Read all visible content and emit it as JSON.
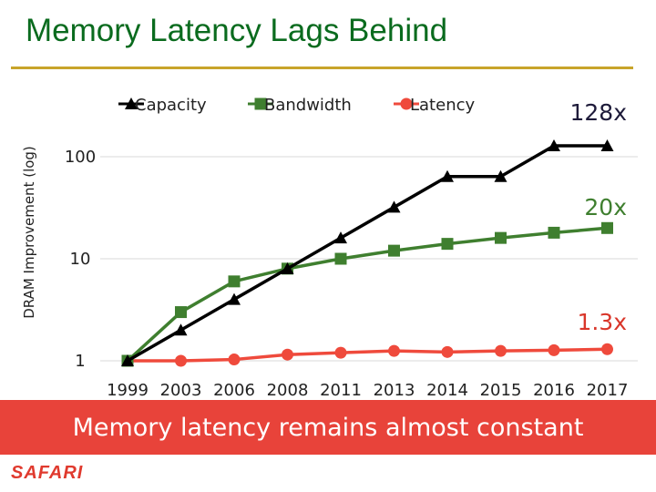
{
  "slide": {
    "title": "Memory Latency Lags Behind",
    "banner": "Memory latency remains almost constant",
    "logo": "SAFARI"
  },
  "colors": {
    "title": "#0a6b1e",
    "rule": "#c8a42a",
    "banner_bg": "#e8433a",
    "capacity": "#000000",
    "bandwidth": "#3f7f2f",
    "latency": "#ef4a3c",
    "capacity_label": "#1e1b3a",
    "bandwidth_label": "#3f7f2f",
    "latency_label": "#d9362a"
  },
  "chart_data": {
    "type": "line",
    "title": "",
    "xlabel": "",
    "ylabel": "DRAM Improvement (log)",
    "yscale": "log",
    "ylim": [
      1,
      200
    ],
    "yticks": [
      1,
      10,
      100
    ],
    "ytick_labels": [
      "1",
      "10",
      "100"
    ],
    "categories": [
      "1999",
      "2003",
      "2006",
      "2008",
      "2011",
      "2013",
      "2014",
      "2015",
      "2016",
      "2017"
    ],
    "legend_position": "top",
    "series": [
      {
        "name": "Capacity",
        "marker": "triangle",
        "values": [
          1,
          2,
          4,
          8,
          16,
          32,
          64,
          64,
          128,
          128
        ]
      },
      {
        "name": "Bandwidth",
        "marker": "square",
        "values": [
          1,
          3,
          6,
          8,
          10,
          12,
          14,
          16,
          18,
          20
        ]
      },
      {
        "name": "Latency",
        "marker": "circle",
        "values": [
          1,
          1,
          1.03,
          1.15,
          1.2,
          1.25,
          1.22,
          1.25,
          1.27,
          1.3
        ]
      }
    ],
    "annotations": [
      {
        "text": "128x",
        "series": "Capacity"
      },
      {
        "text": "20x",
        "series": "Bandwidth"
      },
      {
        "text": "1.3x",
        "series": "Latency"
      }
    ]
  }
}
